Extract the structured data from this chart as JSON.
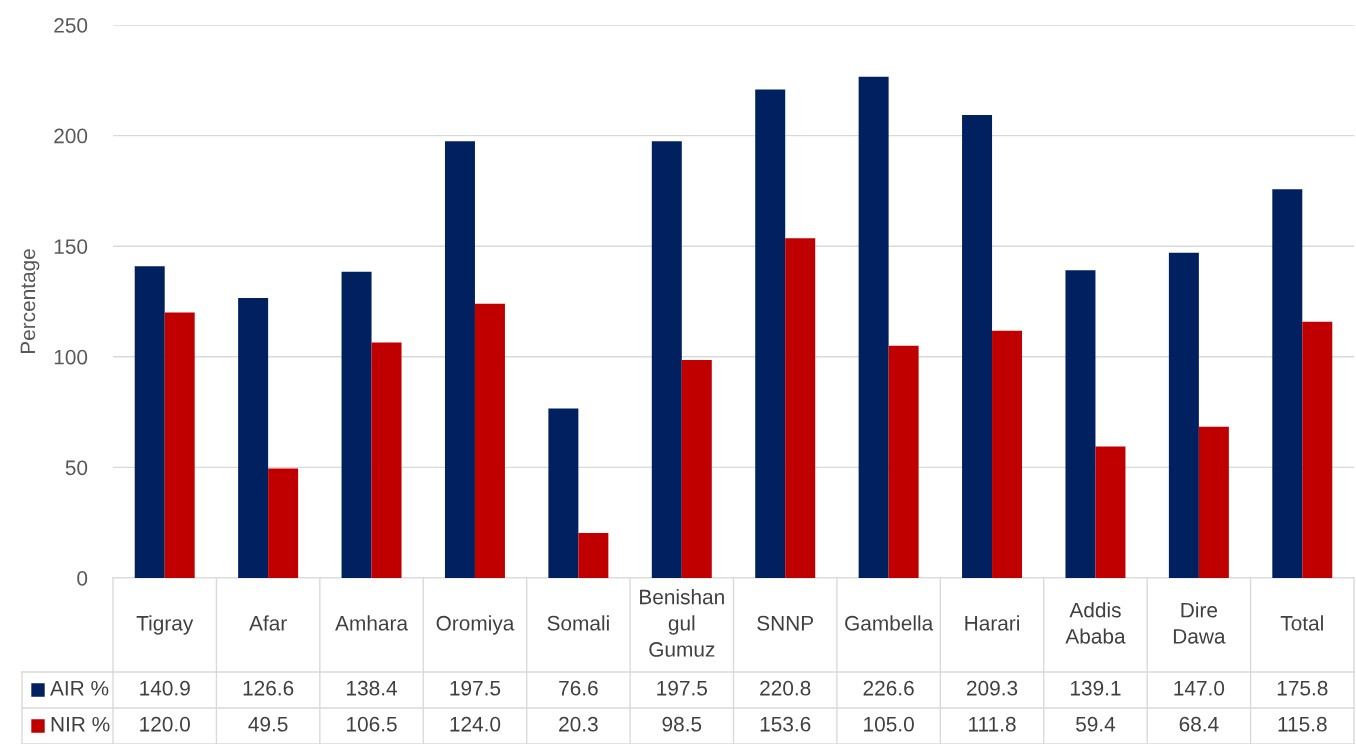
{
  "chart_data": {
    "type": "bar",
    "ylabel": "Percentage",
    "categories": [
      "Tigray",
      "Afar",
      "Amhara",
      "Oromiya",
      "Somali",
      "Benishan\ngul\nGumuz",
      "SNNP",
      "Gambella",
      "Harari",
      "Addis\nAbaba",
      "Dire\nDawa",
      "Total"
    ],
    "series": [
      {
        "name": "AIR %",
        "color": "#002060",
        "values": [
          140.9,
          126.6,
          138.4,
          197.5,
          76.6,
          197.5,
          220.8,
          226.6,
          209.3,
          139.1,
          147.0,
          175.8
        ],
        "value_labels": [
          "140.9",
          "126.6",
          "138.4",
          "197.5",
          "76.6",
          "197.5",
          "220.8",
          "226.6",
          "209.3",
          "139.1",
          "147.0",
          "175.8"
        ]
      },
      {
        "name": "NIR %",
        "color": "#c00000",
        "values": [
          120.0,
          49.5,
          106.5,
          124.0,
          20.3,
          98.5,
          153.6,
          105.0,
          111.8,
          59.4,
          68.4,
          115.8
        ],
        "value_labels": [
          "120.0",
          "49.5",
          "106.5",
          "124.0",
          "20.3",
          "98.5",
          "153.6",
          "105.0",
          "111.8",
          "59.4",
          "68.4",
          "115.8"
        ]
      }
    ],
    "ylim": [
      0,
      250
    ],
    "yticks": [
      0,
      50,
      100,
      150,
      200,
      250
    ],
    "grid": "y",
    "legend": "bottom left"
  }
}
